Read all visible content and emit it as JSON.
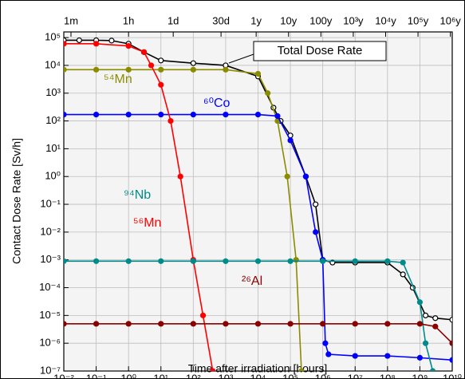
{
  "chart_data": {
    "type": "line",
    "xlabel": "Time after irradiation  [hours]",
    "ylabel": "Contact Dose Rate [Sv/h]",
    "xscale": "log",
    "yscale": "log",
    "grid": true,
    "xlim": [
      0.01,
      10000000000
    ],
    "ylim": [
      1e-07,
      160000
    ],
    "xticks": [
      {
        "value": 0.01,
        "label": "10⁻²"
      },
      {
        "value": 0.1,
        "label": "10⁻¹"
      },
      {
        "value": 1,
        "label": "10⁰"
      },
      {
        "value": 10,
        "label": "10¹"
      },
      {
        "value": 100,
        "label": "10²"
      },
      {
        "value": 1000,
        "label": "10³"
      },
      {
        "value": 10000,
        "label": "10⁴"
      },
      {
        "value": 100000,
        "label": "10⁵"
      },
      {
        "value": 1000000,
        "label": "10⁶"
      },
      {
        "value": 10000000,
        "label": "10⁷"
      },
      {
        "value": 100000000,
        "label": "10⁸"
      },
      {
        "value": 1000000000,
        "label": "10⁹"
      },
      {
        "value": 10000000000,
        "label": "10¹⁰"
      }
    ],
    "x2ticks": [
      {
        "value": 0.0166667,
        "label": "1m"
      },
      {
        "value": 1,
        "label": "1h"
      },
      {
        "value": 24,
        "label": "1d"
      },
      {
        "value": 720,
        "label": "30d"
      },
      {
        "value": 8760,
        "label": "1y"
      },
      {
        "value": 87600,
        "label": "10y"
      },
      {
        "value": 876000,
        "label": "100y"
      },
      {
        "value": 8760000,
        "label": "10³y"
      },
      {
        "value": 87600000,
        "label": "10⁴y"
      },
      {
        "value": 876000000,
        "label": "10⁵y"
      },
      {
        "value": 8760000000,
        "label": "10⁶y"
      }
    ],
    "yticks": [
      {
        "value": 100000,
        "label": "10⁵"
      },
      {
        "value": 10000,
        "label": "10⁴"
      },
      {
        "value": 1000,
        "label": "10³"
      },
      {
        "value": 100,
        "label": "10²"
      },
      {
        "value": 10,
        "label": "10¹"
      },
      {
        "value": 1,
        "label": "10⁰"
      },
      {
        "value": 0.1,
        "label": "10⁻¹"
      },
      {
        "value": 0.01,
        "label": "10⁻²"
      },
      {
        "value": 0.001,
        "label": "10⁻³"
      },
      {
        "value": 0.0001,
        "label": "10⁻⁴"
      },
      {
        "value": 1e-05,
        "label": "10⁻⁵"
      },
      {
        "value": 1e-06,
        "label": "10⁻⁶"
      },
      {
        "value": 1e-07,
        "label": "10⁻⁷"
      }
    ],
    "series": [
      {
        "name": "Total Dose Rate",
        "color": "#000000",
        "x": [
          0.01,
          0.03,
          0.1,
          0.3,
          1,
          3,
          10,
          100,
          1000,
          10000,
          30000,
          50000,
          100000,
          300000,
          600000,
          1000000,
          2000000,
          10000000,
          100000000,
          300000000,
          600000000,
          1500000000,
          3000000000,
          10000000000
        ],
        "values": [
          80000,
          80000,
          80000,
          78000,
          60000,
          30000,
          15000,
          12000,
          10000,
          4000,
          300,
          100,
          30,
          1,
          0.1,
          0.001,
          0.0008,
          0.0008,
          0.0008,
          0.0003,
          0.0001,
          1e-05,
          8e-06,
          7e-06
        ]
      },
      {
        "name": "⁵⁴Mn",
        "color": "#8b8b00",
        "x": [
          0.01,
          0.1,
          1,
          10,
          100,
          1000,
          10000,
          20000,
          40000,
          80000,
          150000,
          220000
        ],
        "values": [
          7000,
          7000,
          7000,
          7000,
          7000,
          7000,
          5000,
          1000,
          100,
          1,
          0.001,
          1e-07
        ]
      },
      {
        "name": "⁶⁰Co",
        "color": "#0000ff",
        "x": [
          0.01,
          0.1,
          1,
          10,
          100,
          1000,
          10000,
          40000,
          100000,
          300000,
          600000,
          1000000,
          1200000,
          1500000,
          10000000,
          100000000,
          1000000000,
          10000000000
        ],
        "values": [
          170,
          170,
          170,
          170,
          170,
          170,
          170,
          150,
          20,
          1,
          0.01,
          0.001,
          1e-06,
          4e-07,
          3.5e-07,
          3.5e-07,
          3e-07,
          2.5e-07
        ]
      },
      {
        "name": "⁵⁶Mn",
        "color": "#ff0000",
        "x": [
          0.01,
          0.1,
          1,
          3,
          5,
          10,
          20,
          40,
          100,
          200,
          400
        ],
        "values": [
          60000,
          60000,
          50000,
          30000,
          10000,
          2000,
          100,
          1,
          0.001,
          1e-05,
          1e-07
        ]
      },
      {
        "name": "⁹⁴Nb",
        "color": "#008b8b",
        "x": [
          0.01,
          0.1,
          1,
          10,
          100,
          1000,
          10000,
          100000,
          1000000,
          10000000,
          100000000,
          300000000,
          1000000000,
          1500000000,
          2500000000
        ],
        "values": [
          0.0009,
          0.0009,
          0.0009,
          0.0009,
          0.0009,
          0.0009,
          0.0009,
          0.0009,
          0.0009,
          0.0009,
          0.0009,
          0.0008,
          3e-05,
          1e-06,
          1e-07
        ]
      },
      {
        "name": "²⁶Al",
        "color": "#8b0000",
        "x": [
          0.01,
          0.1,
          1,
          10,
          100,
          1000,
          10000,
          100000,
          1000000,
          10000000,
          100000000,
          1000000000,
          3000000000,
          10000000000
        ],
        "values": [
          5e-06,
          5e-06,
          5e-06,
          5e-06,
          5e-06,
          5e-06,
          5e-06,
          5e-06,
          5e-06,
          5e-06,
          5e-06,
          5e-06,
          4e-06,
          1e-06
        ]
      }
    ]
  }
}
